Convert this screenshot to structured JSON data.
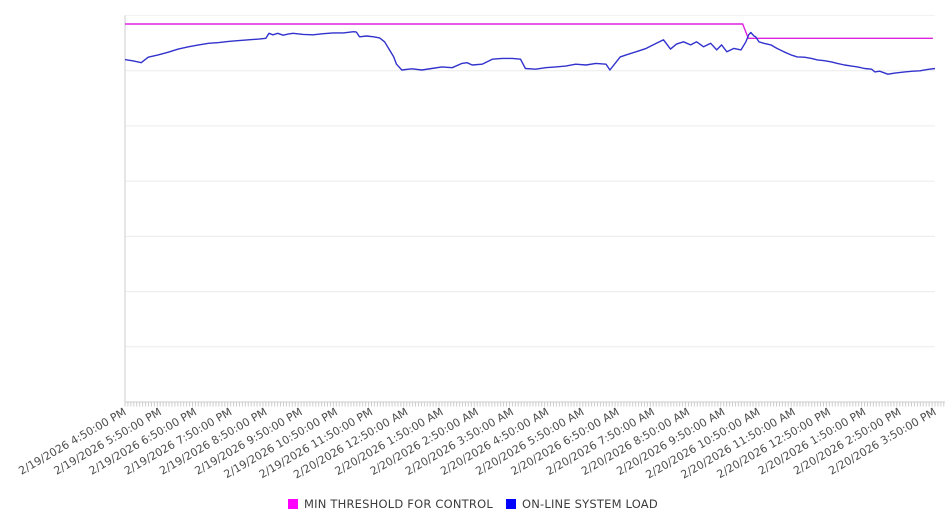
{
  "colors": {
    "background": "#ffffff",
    "gridline": "#ececec",
    "top_gridline": "#f2f2f2",
    "axis_line": "#cccccc",
    "tick": "#cccccc",
    "axis_label_text": "#4d4d4d",
    "legend_text": "#3d3d3d"
  },
  "chart_data": {
    "type": "line",
    "title": "",
    "xlabel": "",
    "ylabel": "",
    "x_unit": "hours_from_first_tick",
    "y_unit": "percent_of_plot_height_from_bottom",
    "grid": "horizontal",
    "legend_position": "bottom-center",
    "x_axis": {
      "label_rotation_deg": -30,
      "minor_tick_interval_minutes": 5,
      "tick_labels": [
        "2/19/2026 4:50:00 PM",
        "2/19/2026 5:50:00 PM",
        "2/19/2026 6:50:00 PM",
        "2/19/2026 7:50:00 PM",
        "2/19/2026 8:50:00 PM",
        "2/19/2026 9:50:00 PM",
        "2/19/2026 10:50:00 PM",
        "2/19/2026 11:50:00 PM",
        "2/20/2026 12:50:00 AM",
        "2/20/2026 1:50:00 AM",
        "2/20/2026 2:50:00 AM",
        "2/20/2026 3:50:00 AM",
        "2/20/2026 4:50:00 AM",
        "2/20/2026 5:50:00 AM",
        "2/20/2026 6:50:00 AM",
        "2/20/2026 7:50:00 AM",
        "2/20/2026 8:50:00 AM",
        "2/20/2026 9:50:00 AM",
        "2/20/2026 10:50:00 AM",
        "2/20/2026 11:50:00 AM",
        "2/20/2026 12:50:00 PM",
        "2/20/2026 1:50:00 PM",
        "2/20/2026 2:50:00 PM",
        "2/20/2026 3:50:00 PM"
      ]
    },
    "y_axis": {
      "tick_labels_visible": false,
      "gridline_divisions": 7
    },
    "series": [
      {
        "name": "MIN THRESHOLD FOR CONTROL",
        "color": "#dd22dd",
        "legend_color": "#ff00ff",
        "shape": "step_down_once",
        "points": [
          [
            0,
            97.8
          ],
          [
            17.54,
            97.8
          ],
          [
            17.7,
            94.1
          ],
          [
            22.94,
            94.1
          ]
        ]
      },
      {
        "name": "ON-LINE SYSTEM LOAD",
        "color": "#3232cd",
        "legend_color": "#0000ff",
        "shape": "irregular",
        "points": [
          [
            0,
            88.6
          ],
          [
            0.2,
            88.3
          ],
          [
            0.37,
            88.0
          ],
          [
            0.46,
            87.8
          ],
          [
            0.66,
            89.2
          ],
          [
            0.94,
            89.8
          ],
          [
            1.23,
            90.5
          ],
          [
            1.51,
            91.3
          ],
          [
            1.8,
            91.9
          ],
          [
            2.09,
            92.4
          ],
          [
            2.37,
            92.8
          ],
          [
            2.66,
            93.0
          ],
          [
            2.94,
            93.3
          ],
          [
            3.23,
            93.5
          ],
          [
            3.51,
            93.7
          ],
          [
            3.8,
            93.9
          ],
          [
            4.0,
            94.1
          ],
          [
            4.09,
            95.4
          ],
          [
            4.2,
            95.0
          ],
          [
            4.34,
            95.4
          ],
          [
            4.49,
            94.9
          ],
          [
            4.63,
            95.2
          ],
          [
            4.77,
            95.4
          ],
          [
            5.06,
            95.1
          ],
          [
            5.34,
            95.0
          ],
          [
            5.63,
            95.3
          ],
          [
            5.91,
            95.5
          ],
          [
            6.2,
            95.5
          ],
          [
            6.49,
            95.8
          ],
          [
            6.57,
            95.7
          ],
          [
            6.66,
            94.5
          ],
          [
            6.86,
            94.7
          ],
          [
            7.06,
            94.5
          ],
          [
            7.23,
            94.2
          ],
          [
            7.37,
            93.2
          ],
          [
            7.51,
            91.1
          ],
          [
            7.63,
            89.3
          ],
          [
            7.71,
            87.4
          ],
          [
            7.86,
            85.9
          ],
          [
            8.14,
            86.2
          ],
          [
            8.43,
            85.9
          ],
          [
            8.71,
            86.3
          ],
          [
            9.0,
            86.7
          ],
          [
            9.29,
            86.5
          ],
          [
            9.57,
            87.6
          ],
          [
            9.71,
            87.8
          ],
          [
            9.86,
            87.2
          ],
          [
            10.14,
            87.4
          ],
          [
            10.43,
            88.7
          ],
          [
            10.71,
            88.9
          ],
          [
            11.0,
            88.9
          ],
          [
            11.23,
            88.7
          ],
          [
            11.37,
            86.3
          ],
          [
            11.66,
            86.1
          ],
          [
            11.94,
            86.5
          ],
          [
            12.23,
            86.7
          ],
          [
            12.51,
            86.9
          ],
          [
            12.8,
            87.4
          ],
          [
            13.09,
            87.2
          ],
          [
            13.37,
            87.6
          ],
          [
            13.66,
            87.4
          ],
          [
            13.77,
            85.9
          ],
          [
            14.06,
            89.3
          ],
          [
            14.23,
            89.8
          ],
          [
            14.51,
            90.6
          ],
          [
            14.8,
            91.5
          ],
          [
            15.09,
            92.8
          ],
          [
            15.29,
            93.7
          ],
          [
            15.49,
            91.3
          ],
          [
            15.66,
            92.6
          ],
          [
            15.86,
            93.2
          ],
          [
            16.06,
            92.4
          ],
          [
            16.23,
            93.2
          ],
          [
            16.43,
            91.9
          ],
          [
            16.63,
            92.8
          ],
          [
            16.8,
            91.1
          ],
          [
            16.94,
            92.4
          ],
          [
            17.09,
            90.6
          ],
          [
            17.29,
            91.5
          ],
          [
            17.49,
            91.1
          ],
          [
            17.63,
            93.2
          ],
          [
            17.71,
            95.0
          ],
          [
            17.77,
            95.6
          ],
          [
            17.86,
            94.7
          ],
          [
            17.91,
            94.5
          ],
          [
            18.0,
            93.2
          ],
          [
            18.14,
            92.8
          ],
          [
            18.34,
            92.4
          ],
          [
            18.51,
            91.5
          ],
          [
            18.71,
            90.6
          ],
          [
            18.91,
            89.8
          ],
          [
            19.09,
            89.3
          ],
          [
            19.29,
            89.2
          ],
          [
            19.49,
            88.9
          ],
          [
            19.66,
            88.5
          ],
          [
            19.86,
            88.3
          ],
          [
            20.06,
            88.0
          ],
          [
            20.23,
            87.6
          ],
          [
            20.43,
            87.2
          ],
          [
            20.63,
            86.9
          ],
          [
            20.8,
            86.7
          ],
          [
            21.0,
            86.3
          ],
          [
            21.2,
            86.1
          ],
          [
            21.29,
            85.4
          ],
          [
            21.43,
            85.6
          ],
          [
            21.66,
            84.8
          ],
          [
            21.86,
            85.1
          ],
          [
            22.14,
            85.4
          ],
          [
            22.37,
            85.6
          ],
          [
            22.57,
            85.7
          ],
          [
            22.77,
            86.0
          ],
          [
            23.0,
            86.3
          ]
        ]
      }
    ]
  }
}
